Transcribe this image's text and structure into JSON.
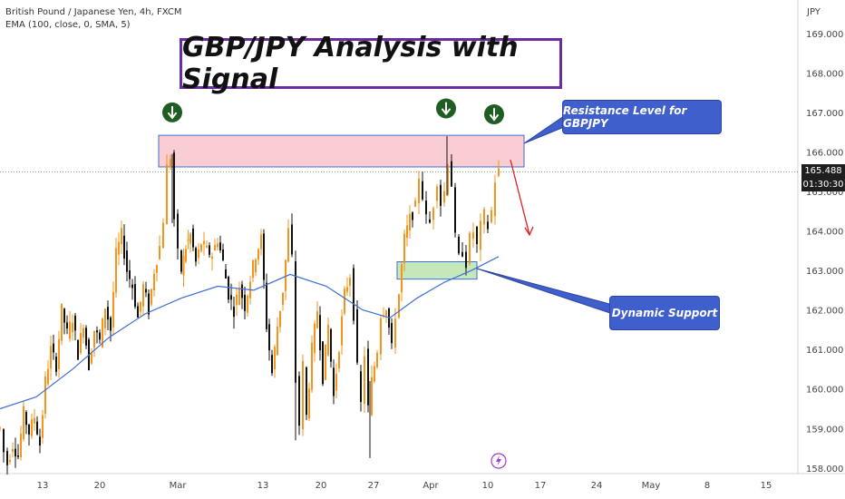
{
  "header": {
    "symbol_line": "British Pound / Japanese Yen, 4h, FXCM",
    "indicator_line": "EMA (100, close, 0, SMA, 5)"
  },
  "annotations": {
    "title": "GBP/JPY Analysis with Signal",
    "resistance_label": "Resistance Level for GBPJPY",
    "support_label": "Dynamic Support"
  },
  "price_axis": {
    "currency": "JPY",
    "last_price": "165.488",
    "countdown": "01:30:30",
    "partial_label": "165.000"
  },
  "colors": {
    "candle_up": "#f7931a",
    "candle_down": "#111111",
    "ema": "#3d6fd6",
    "resistance_fill": "#f8c8cc",
    "support_fill": "#bfe5b4",
    "title_border": "#6c2b9e",
    "arrow_marker": "#1e5e22",
    "projection_arrow": "#e02020"
  },
  "chart_data": {
    "type": "candlestick",
    "timeframe": "4h",
    "x_tick_labels": [
      "13",
      "20",
      "Mar",
      "13",
      "20",
      "27",
      "Apr",
      "10",
      "17",
      "24",
      "May",
      "8",
      "15"
    ],
    "y_tick_labels": [
      "158.000",
      "159.000",
      "160.000",
      "161.000",
      "162.000",
      "163.000",
      "164.000",
      "165.000",
      "166.000",
      "167.000",
      "168.000",
      "169.000"
    ],
    "ylim": [
      157.95,
      169.5
    ],
    "close_path": [
      [
        0,
        159.0
      ],
      [
        4,
        158.4
      ],
      [
        8,
        158.1
      ],
      [
        14,
        158.6
      ],
      [
        20,
        158.3
      ],
      [
        26,
        159.4
      ],
      [
        32,
        158.9
      ],
      [
        38,
        159.3
      ],
      [
        44,
        158.6
      ],
      [
        50,
        160.2
      ],
      [
        56,
        161.0
      ],
      [
        62,
        160.6
      ],
      [
        68,
        162.0
      ],
      [
        74,
        161.4
      ],
      [
        80,
        161.8
      ],
      [
        86,
        160.9
      ],
      [
        92,
        161.7
      ],
      [
        98,
        160.6
      ],
      [
        104,
        161.5
      ],
      [
        110,
        161.2
      ],
      [
        116,
        162.1
      ],
      [
        122,
        161.5
      ],
      [
        128,
        163.4
      ],
      [
        134,
        163.9
      ],
      [
        140,
        163.0
      ],
      [
        146,
        162.6
      ],
      [
        152,
        161.8
      ],
      [
        158,
        162.6
      ],
      [
        164,
        162.0
      ],
      [
        170,
        163.0
      ],
      [
        176,
        163.6
      ],
      [
        180,
        164.3
      ],
      [
        184,
        165.6
      ],
      [
        188,
        165.9
      ],
      [
        192,
        164.3
      ],
      [
        196,
        163.4
      ],
      [
        200,
        163.0
      ],
      [
        205,
        163.6
      ],
      [
        210,
        163.9
      ],
      [
        216,
        163.2
      ],
      [
        222,
        163.7
      ],
      [
        228,
        163.5
      ],
      [
        234,
        163.4
      ],
      [
        240,
        163.8
      ],
      [
        246,
        163.2
      ],
      [
        252,
        162.4
      ],
      [
        258,
        162.0
      ],
      [
        264,
        162.6
      ],
      [
        270,
        162.1
      ],
      [
        276,
        162.8
      ],
      [
        282,
        163.4
      ],
      [
        288,
        163.8
      ],
      [
        294,
        161.6
      ],
      [
        300,
        160.4
      ],
      [
        306,
        161.6
      ],
      [
        312,
        162.5
      ],
      [
        318,
        164.0
      ],
      [
        322,
        163.3
      ],
      [
        326,
        160.2
      ],
      [
        330,
        159.1
      ],
      [
        334,
        160.6
      ],
      [
        338,
        159.3
      ],
      [
        344,
        161.0
      ],
      [
        350,
        162.0
      ],
      [
        356,
        160.3
      ],
      [
        362,
        161.6
      ],
      [
        368,
        159.8
      ],
      [
        374,
        161.1
      ],
      [
        380,
        162.4
      ],
      [
        386,
        162.9
      ],
      [
        390,
        161.9
      ],
      [
        394,
        160.5
      ],
      [
        398,
        159.6
      ],
      [
        402,
        160.9
      ],
      [
        406,
        159.5
      ],
      [
        410,
        160.2
      ],
      [
        416,
        161.0
      ],
      [
        420,
        161.9
      ],
      [
        426,
        162.1
      ],
      [
        432,
        161.0
      ],
      [
        436,
        161.9
      ],
      [
        440,
        162.4
      ],
      [
        446,
        163.8
      ],
      [
        452,
        164.3
      ],
      [
        458,
        164.6
      ],
      [
        462,
        165.4
      ],
      [
        466,
        164.9
      ],
      [
        470,
        164.3
      ],
      [
        474,
        164.2
      ],
      [
        478,
        164.7
      ],
      [
        482,
        165.3
      ],
      [
        486,
        164.7
      ],
      [
        490,
        165.0
      ],
      [
        494,
        165.8
      ],
      [
        498,
        165.2
      ],
      [
        502,
        163.8
      ],
      [
        506,
        163.3
      ],
      [
        510,
        163.5
      ],
      [
        514,
        163.2
      ],
      [
        518,
        163.8
      ],
      [
        522,
        164.0
      ],
      [
        526,
        163.6
      ],
      [
        530,
        164.1
      ],
      [
        534,
        164.4
      ],
      [
        538,
        164.1
      ],
      [
        542,
        164.5
      ],
      [
        546,
        165.3
      ],
      [
        550,
        165.5
      ]
    ],
    "ema_path": [
      [
        0,
        159.5
      ],
      [
        40,
        159.8
      ],
      [
        80,
        160.5
      ],
      [
        120,
        161.3
      ],
      [
        160,
        161.9
      ],
      [
        200,
        162.3
      ],
      [
        240,
        162.6
      ],
      [
        280,
        162.5
      ],
      [
        320,
        162.9
      ],
      [
        360,
        162.6
      ],
      [
        400,
        162.0
      ],
      [
        430,
        161.8
      ],
      [
        460,
        162.3
      ],
      [
        490,
        162.7
      ],
      [
        520,
        163.0
      ],
      [
        550,
        163.35
      ]
    ],
    "resistance_zone": {
      "ymin": 165.62,
      "ymax": 166.42,
      "x_start": 175,
      "x_end": 578
    },
    "support_zone": {
      "ymin": 162.78,
      "ymax": 163.22,
      "x_start": 438,
      "x_end": 526
    },
    "sell_markers": [
      {
        "x": 190,
        "y": 167.0
      },
      {
        "x": 492,
        "y": 167.1
      },
      {
        "x": 545,
        "y": 166.95
      }
    ],
    "projection_arrow": {
      "from": {
        "x": 563,
        "y": 165.8
      },
      "to": {
        "x": 584,
        "y": 163.9
      }
    }
  }
}
